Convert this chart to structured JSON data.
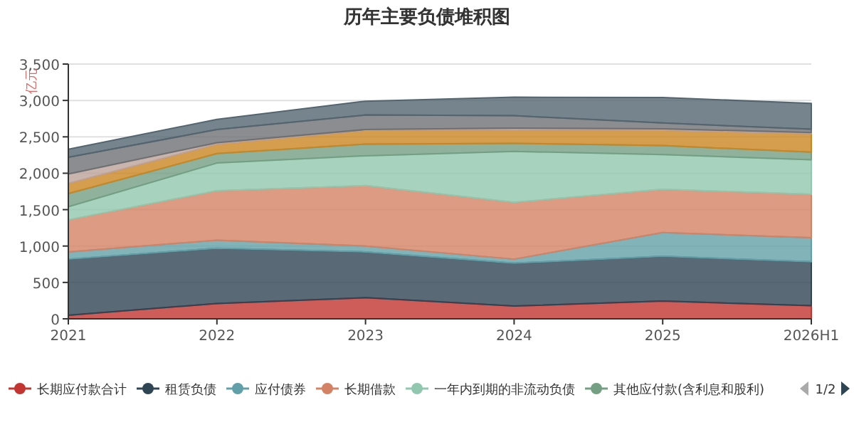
{
  "chart_data": {
    "type": "area",
    "stacked": true,
    "title": "历年主要负债堆积图",
    "ylabel": "亿元",
    "categories": [
      "2021",
      "2022",
      "2023",
      "2024",
      "2025",
      "2026H1"
    ],
    "ylim": [
      0,
      3500
    ],
    "yticks": [
      0,
      {
        "value": 500,
        "label": "500"
      },
      {
        "value": 1000,
        "label": "1,000"
      },
      {
        "value": 1500,
        "label": "1,500"
      },
      {
        "value": 2000,
        "label": "2,000"
      },
      {
        "value": 2500,
        "label": "2,500"
      },
      {
        "value": 3000,
        "label": "3,000"
      },
      {
        "value": 3500,
        "label": "3,500"
      }
    ],
    "grid": "y",
    "legend": "bottom",
    "annotations": [
      "1/2"
    ],
    "series": [
      {
        "name": "长期应付款合计",
        "color": "#c23531",
        "values": [
          50,
          210,
          290,
          175,
          245,
          180
        ]
      },
      {
        "name": "租赁负债",
        "color": "#2f4554",
        "values": [
          770,
          760,
          630,
          590,
          615,
          605
        ]
      },
      {
        "name": "应付债券",
        "color": "#61a0a8",
        "values": [
          100,
          110,
          80,
          55,
          325,
          330
        ]
      },
      {
        "name": "长期借款",
        "color": "#d48265",
        "values": [
          440,
          680,
          830,
          780,
          595,
          595
        ]
      },
      {
        "name": "一年内到期的非流动负债",
        "color": "#91c7ae",
        "values": [
          180,
          380,
          410,
          700,
          475,
          475
        ]
      },
      {
        "name": "其他应付款(含利息和股利)",
        "color": "#749f83",
        "values": [
          180,
          130,
          160,
          110,
          125,
          105
        ]
      },
      {
        "color": "#ca8622",
        "values": [
          140,
          130,
          190,
          190,
          210,
          255
        ]
      },
      {
        "color": "#bda29a",
        "values": [
          130,
          20,
          10,
          20,
          20,
          15
        ]
      },
      {
        "color": "#6e7074",
        "values": [
          230,
          180,
          200,
          170,
          80,
          45
        ]
      },
      {
        "color": "#546570",
        "values": [
          110,
          140,
          190,
          255,
          350,
          355
        ]
      }
    ]
  }
}
